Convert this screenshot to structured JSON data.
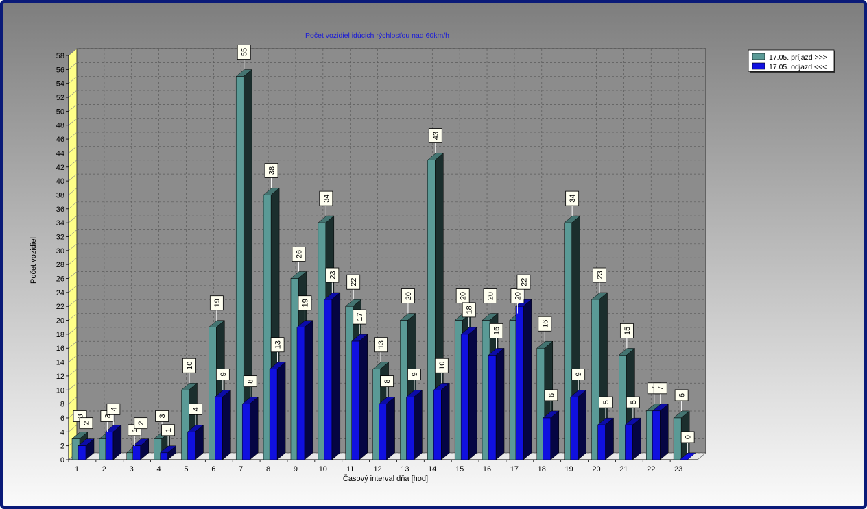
{
  "chart_data": {
    "type": "bar",
    "title": "Počet vozidiel idúcich rýchlosťou nad 60km/h",
    "xlabel": "Časový interval dňa [hod]",
    "ylabel": "Počet vozidiel",
    "ylim": [
      0,
      58
    ],
    "yticks": [
      0,
      2,
      4,
      6,
      8,
      10,
      12,
      14,
      16,
      18,
      20,
      22,
      24,
      26,
      28,
      30,
      32,
      34,
      36,
      38,
      40,
      42,
      44,
      46,
      48,
      50,
      52,
      54,
      56,
      58
    ],
    "grid": true,
    "legend_position": "top-right",
    "categories": [
      "1",
      "2",
      "3",
      "4",
      "5",
      "6",
      "7",
      "8",
      "9",
      "10",
      "11",
      "12",
      "13",
      "14",
      "15",
      "16",
      "17",
      "18",
      "19",
      "20",
      "21",
      "22",
      "23"
    ],
    "series": [
      {
        "name": "17.05. príjazd >>>",
        "color": "#5a9a96",
        "values": [
          3,
          3,
          1,
          3,
          10,
          19,
          55,
          38,
          26,
          34,
          22,
          13,
          20,
          43,
          20,
          20,
          20,
          16,
          34,
          23,
          15,
          7,
          6
        ]
      },
      {
        "name": "17.05. odjazd <<<",
        "color": "#1010e0",
        "values": [
          2,
          4,
          2,
          1,
          4,
          9,
          8,
          13,
          19,
          23,
          17,
          8,
          9,
          10,
          18,
          15,
          22,
          6,
          9,
          5,
          5,
          7,
          0
        ]
      }
    ]
  }
}
